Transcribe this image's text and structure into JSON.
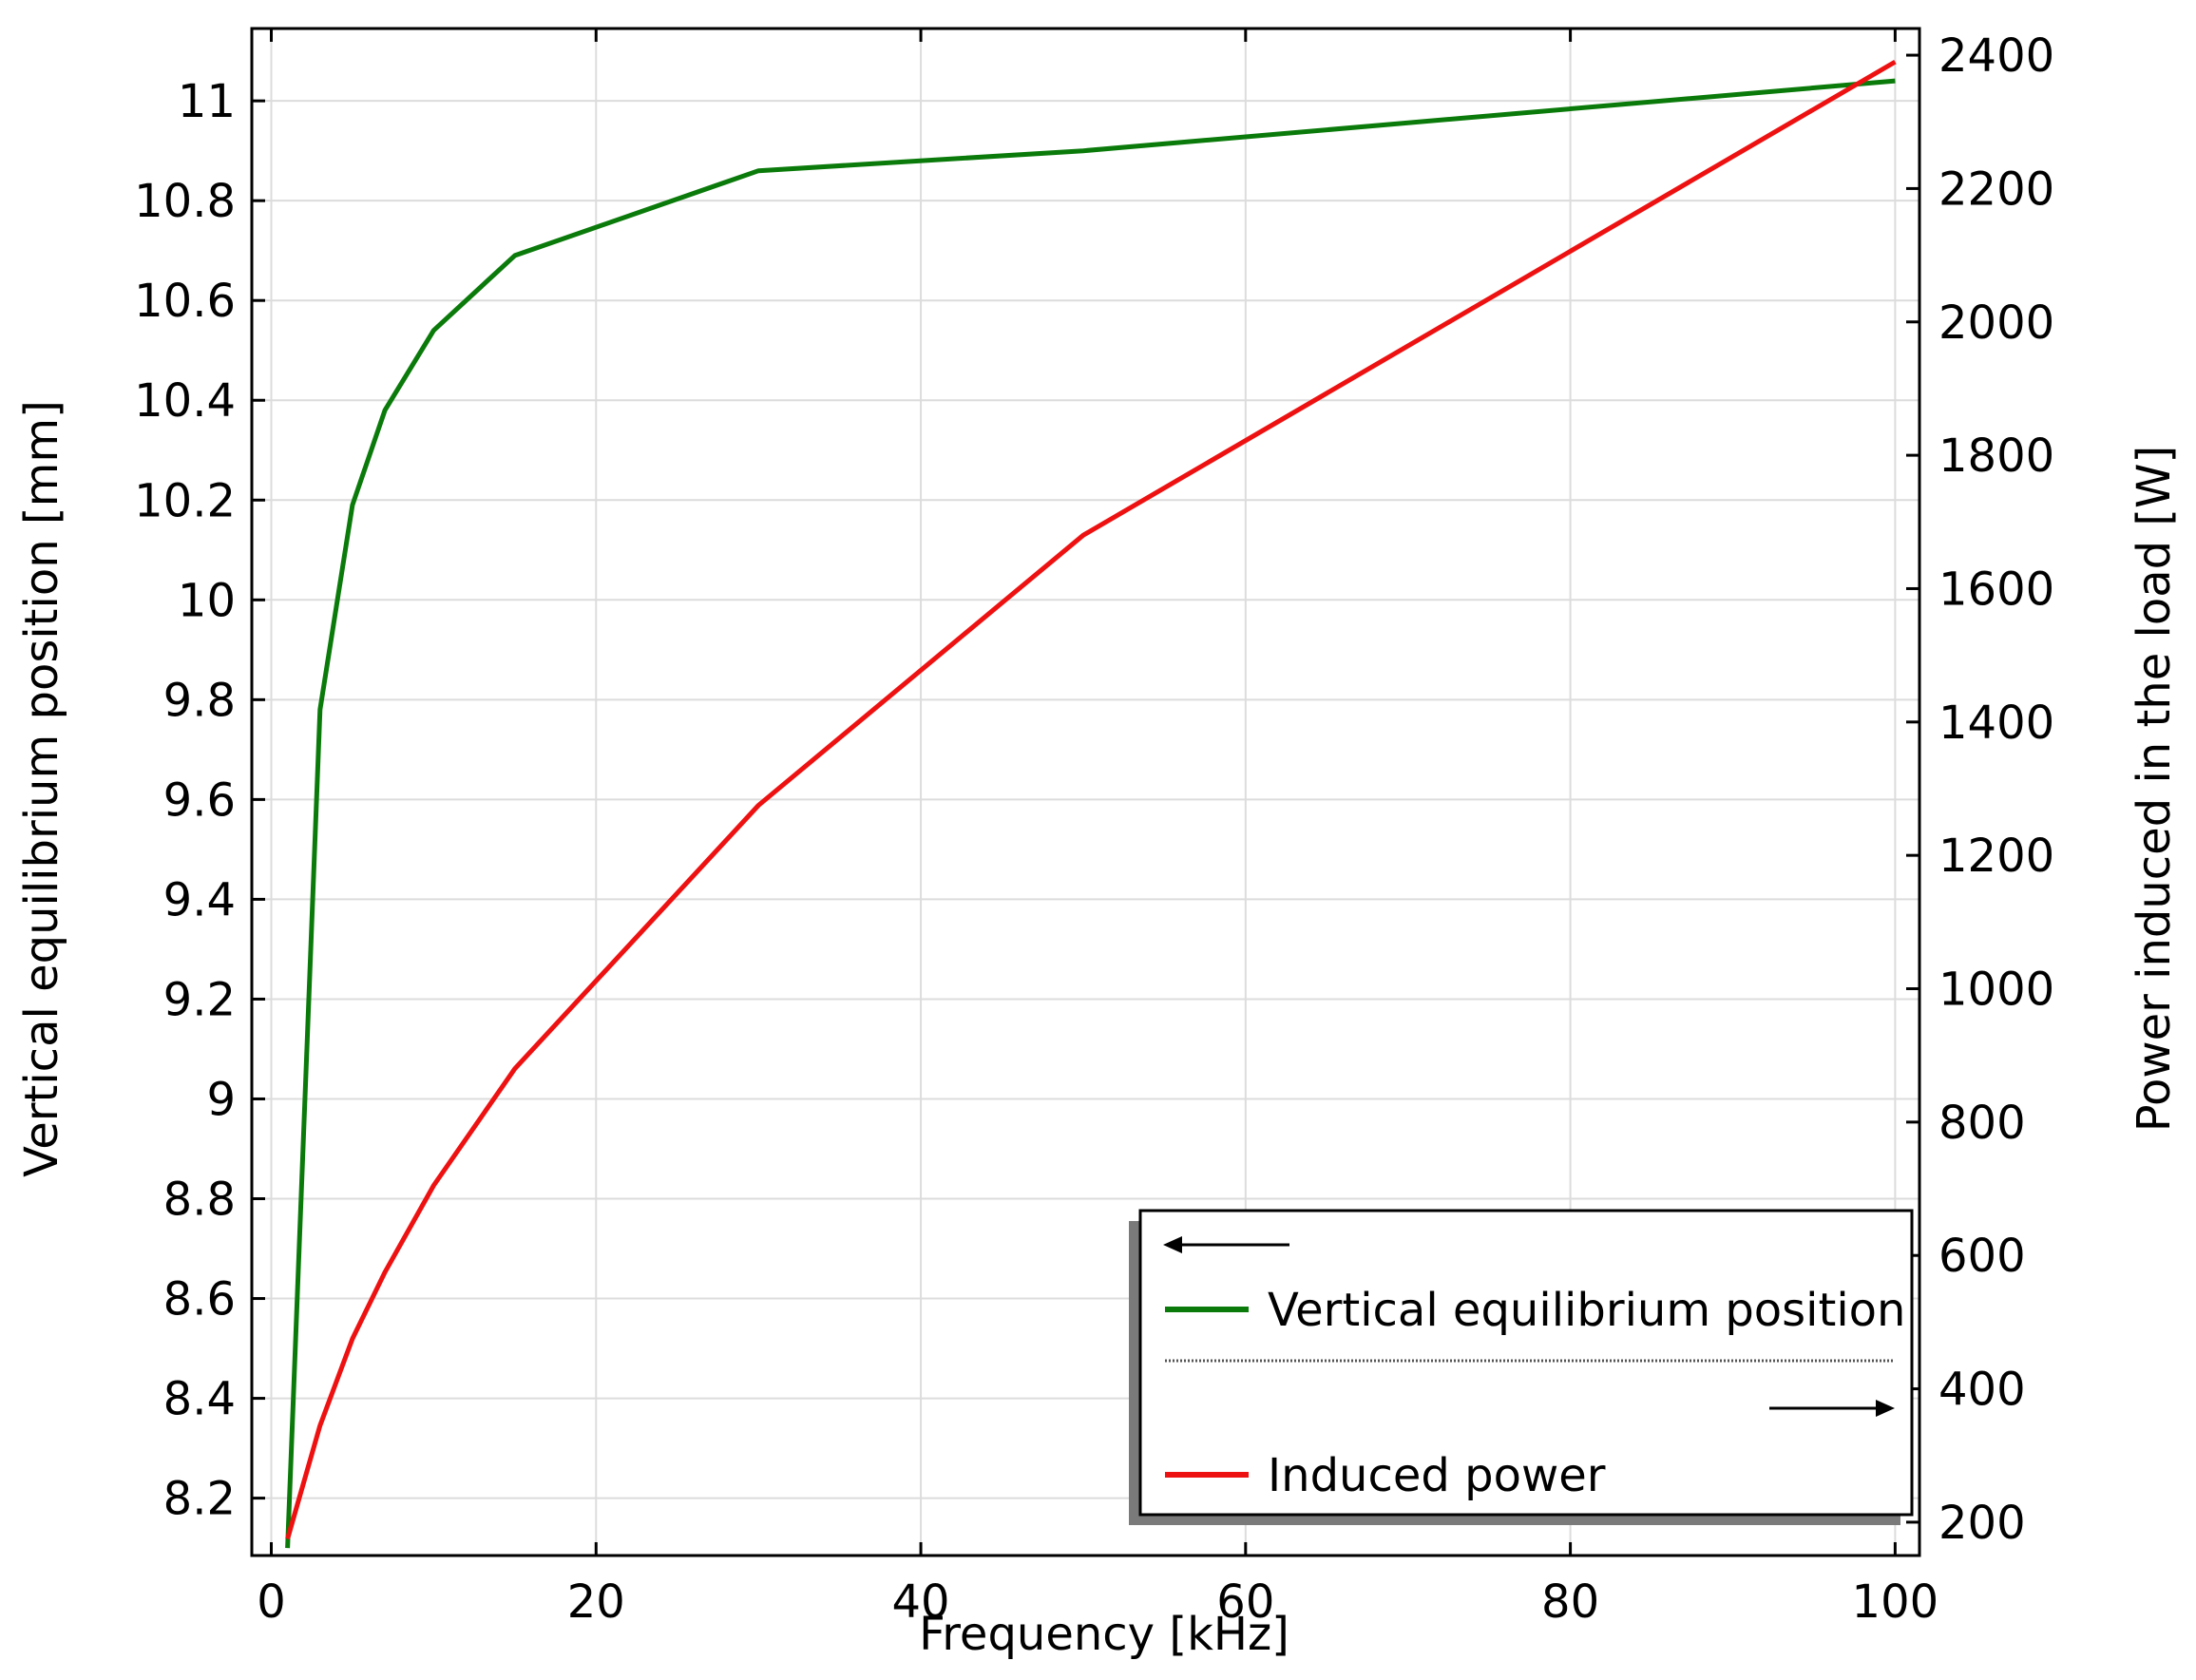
{
  "chart_data": {
    "type": "line",
    "title": "",
    "xlabel": "Frequency [kHz]",
    "ylabel_left": "Vertical equilibrium position [mm]",
    "ylabel_right": "Power induced in the load [W]",
    "xlim": [
      -1.2,
      101.5
    ],
    "ylim_left": [
      8.085,
      11.145
    ],
    "ylim_right": [
      150,
      2440
    ],
    "x_ticks": [
      0,
      20,
      40,
      60,
      80,
      100
    ],
    "x_tick_labels": [
      "0",
      "20",
      "40",
      "60",
      "80",
      "100"
    ],
    "y_left_ticks": [
      8.2,
      8.4,
      8.6,
      8.8,
      9,
      9.2,
      9.4,
      9.6,
      9.8,
      10,
      10.2,
      10.4,
      10.6,
      10.8,
      11
    ],
    "y_left_tick_labels": [
      "8.2",
      "8.4",
      "8.6",
      "8.8",
      "9",
      "9.2",
      "9.4",
      "9.6",
      "9.8",
      "10",
      "10.2",
      "10.4",
      "10.6",
      "10.8",
      "11"
    ],
    "y_right_ticks": [
      200,
      400,
      600,
      800,
      1000,
      1200,
      1400,
      1600,
      1800,
      2000,
      2200,
      2400
    ],
    "y_right_tick_labels": [
      "200",
      "400",
      "600",
      "800",
      "1000",
      "1200",
      "1400",
      "1600",
      "1800",
      "2000",
      "2200",
      "2400"
    ],
    "grid": true,
    "legend_position": "bottom-right",
    "series": [
      {
        "name": "Vertical equilibrium position",
        "axis": "left",
        "color": "#0a7a0a",
        "x": [
          1,
          3,
          5,
          7,
          10,
          15,
          30,
          50,
          100
        ],
        "y": [
          8.1,
          9.78,
          10.19,
          10.38,
          10.54,
          10.69,
          10.86,
          10.9,
          11.04
        ]
      },
      {
        "name": "Induced power",
        "axis": "right",
        "color": "#ee1111",
        "x": [
          1,
          3,
          5,
          7,
          10,
          15,
          30,
          50,
          100
        ],
        "y": [
          175,
          345,
          475,
          575,
          705,
          880,
          1275,
          1680,
          2390
        ]
      }
    ],
    "legend_arrows": {
      "left_axis_arrow": "left-arrow-icon",
      "right_axis_arrow": "right-arrow-icon"
    }
  }
}
